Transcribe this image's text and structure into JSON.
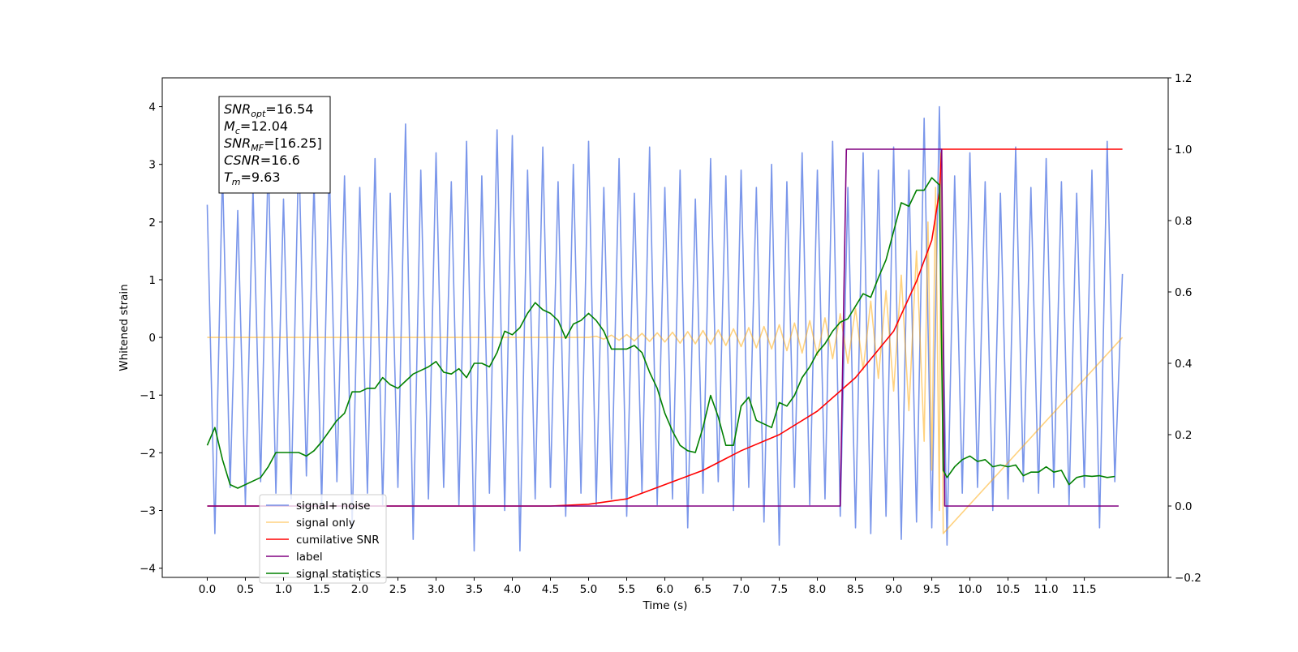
{
  "chart_data": {
    "type": "line",
    "xlabel": "Time (s)",
    "ylabel": "Whitened strain",
    "xlim": [
      -0.59,
      12.6
    ],
    "ylim": [
      -4.16,
      4.5
    ],
    "y2lim": [
      -0.2,
      1.2
    ],
    "xticks": [
      {
        "value": 0,
        "label": "0.0"
      },
      0.5,
      {
        "value": 1,
        "label": "1.0"
      },
      1.5,
      {
        "value": 2,
        "label": "2.0"
      },
      2.5,
      {
        "value": 3,
        "label": "3.0"
      },
      3.5,
      {
        "value": 4,
        "label": "4.0"
      },
      4.5,
      {
        "value": 5,
        "label": "5.0"
      },
      5.5,
      {
        "value": 6,
        "label": "6.0"
      },
      6.5,
      {
        "value": 7,
        "label": "7.0"
      },
      7.5,
      {
        "value": 8,
        "label": "8.0"
      },
      8.5,
      {
        "value": 9,
        "label": "9.0"
      },
      9.5,
      {
        "value": 10,
        "label": "10.0"
      },
      10.5,
      {
        "value": 11,
        "label": "11.0"
      },
      11.5
    ],
    "yticks": [
      {
        "value": -4,
        "label": "−4"
      },
      {
        "value": -3,
        "label": "−3"
      },
      {
        "value": -2,
        "label": "−2"
      },
      {
        "value": -1,
        "label": "−1"
      },
      0,
      1,
      2,
      3,
      4
    ],
    "y2ticks": [
      {
        "value": -0.2,
        "label": "−0.2"
      },
      {
        "value": 0,
        "label": "0.0"
      },
      0.2,
      0.4,
      0.6,
      0.8,
      {
        "value": 1,
        "label": "1.0"
      },
      1.2
    ],
    "legend": "lower left",
    "annotation": [
      {
        "name": "SNR",
        "sub": "opt",
        "text": "=16.54"
      },
      {
        "name": "M",
        "sub": "c",
        "text": "=12.04"
      },
      {
        "name": "SNR",
        "sub": "MF",
        "text": "=[16.25]"
      },
      {
        "name": "CSNR",
        "text": "=16.6"
      },
      {
        "name": "T",
        "sub": "m",
        "text": "=9.63"
      }
    ],
    "series": [
      {
        "name": "signal+ noise",
        "color": "#4169e1",
        "alpha": 0.7,
        "x": [
          0,
          0.1,
          0.2,
          0.3,
          0.4,
          0.5,
          0.6,
          0.7,
          0.8,
          0.9,
          1,
          1.1,
          1.2,
          1.3,
          1.4,
          1.5,
          1.6,
          1.7,
          1.8,
          1.9,
          2,
          2.1,
          2.2,
          2.3,
          2.4,
          2.5,
          2.6,
          2.7,
          2.8,
          2.9,
          3,
          3.1,
          3.2,
          3.3,
          3.4,
          3.5,
          3.6,
          3.7,
          3.8,
          3.9,
          4,
          4.1,
          4.2,
          4.3,
          4.4,
          4.5,
          4.6,
          4.7,
          4.8,
          4.9,
          5,
          5.1,
          5.2,
          5.3,
          5.4,
          5.5,
          5.6,
          5.7,
          5.8,
          5.9,
          6,
          6.1,
          6.2,
          6.3,
          6.4,
          6.5,
          6.6,
          6.7,
          6.8,
          6.9,
          7,
          7.1,
          7.2,
          7.3,
          7.4,
          7.5,
          7.6,
          7.7,
          7.8,
          7.9,
          8,
          8.1,
          8.2,
          8.3,
          8.4,
          8.5,
          8.6,
          8.7,
          8.8,
          8.9,
          9,
          9.1,
          9.2,
          9.3,
          9.4,
          9.5,
          9.6,
          9.7,
          9.8,
          9.9,
          10,
          10.1,
          10.2,
          10.3,
          10.4,
          10.5,
          10.6,
          10.7,
          10.8,
          10.9,
          11,
          11.1,
          11.2,
          11.3,
          11.4,
          11.5,
          11.6,
          11.7,
          11.8,
          11.9,
          12
        ],
        "values": [
          2.3,
          -3.4,
          2.9,
          -2.6,
          2.2,
          -2.9,
          2.6,
          -2.5,
          3.1,
          -2.7,
          2.4,
          -2.8,
          3.3,
          -2.4,
          2.7,
          -2.9,
          3.0,
          -2.5,
          2.8,
          -3.3,
          2.6,
          -2.7,
          3.1,
          -2.9,
          2.5,
          -2.6,
          3.7,
          -3.5,
          2.9,
          -2.8,
          3.2,
          -2.6,
          2.7,
          -2.9,
          3.4,
          -3.7,
          2.8,
          -2.7,
          3.6,
          -3.0,
          3.5,
          -3.7,
          2.9,
          -2.8,
          3.3,
          -2.6,
          2.7,
          -3.1,
          3.0,
          -2.7,
          3.4,
          -2.9,
          2.6,
          -2.8,
          3.1,
          -3.1,
          2.5,
          -2.7,
          3.3,
          -2.9,
          2.6,
          -2.8,
          2.9,
          -3.3,
          2.4,
          -2.7,
          3.1,
          -2.5,
          2.8,
          -3.0,
          2.9,
          -2.6,
          2.6,
          -3.2,
          3.0,
          -3.6,
          2.7,
          -2.6,
          3.2,
          -2.9,
          2.9,
          -2.8,
          3.4,
          -3.1,
          2.6,
          -3.3,
          3.2,
          -3.4,
          2.9,
          -3.1,
          3.3,
          -3.5,
          2.9,
          -3.2,
          3.8,
          -3.3,
          4.0,
          -3.6,
          2.8,
          -2.7,
          3.2,
          -2.6,
          2.7,
          -3.0,
          2.5,
          -2.8,
          3.3,
          -2.5,
          2.6,
          -2.7,
          3.1,
          -2.6,
          2.7,
          -2.9,
          2.5,
          -2.6,
          2.9,
          -3.3,
          3.4,
          -2.5,
          1.1
        ]
      },
      {
        "name": "signal only",
        "color": "#ffa500",
        "alpha": 0.5,
        "x": [
          0,
          5.0,
          5.1,
          5.2,
          5.3,
          5.4,
          5.5,
          5.6,
          5.7,
          5.8,
          5.9,
          6.0,
          6.1,
          6.2,
          6.3,
          6.4,
          6.5,
          6.6,
          6.7,
          6.8,
          6.9,
          7.0,
          7.1,
          7.2,
          7.3,
          7.4,
          7.5,
          7.6,
          7.7,
          7.8,
          7.9,
          8.0,
          8.1,
          8.2,
          8.3,
          8.4,
          8.5,
          8.6,
          8.7,
          8.8,
          8.9,
          9.0,
          9.1,
          9.2,
          9.3,
          9.4,
          9.45,
          9.5,
          9.55,
          9.6,
          9.62,
          9.65,
          12
        ],
        "values": [
          0,
          0,
          0.02,
          -0.03,
          0.04,
          -0.05,
          0.05,
          -0.06,
          0.07,
          -0.07,
          0.08,
          -0.08,
          0.09,
          -0.1,
          0.1,
          -0.11,
          0.12,
          -0.12,
          0.13,
          -0.14,
          0.15,
          -0.16,
          0.17,
          -0.18,
          0.19,
          -0.2,
          0.22,
          -0.23,
          0.25,
          -0.27,
          0.29,
          -0.31,
          0.34,
          -0.37,
          0.41,
          -0.45,
          0.5,
          -0.56,
          0.63,
          -0.71,
          0.81,
          -0.93,
          1.08,
          -1.27,
          1.5,
          -1.8,
          2.0,
          -2.3,
          2.6,
          -3.0,
          3.2,
          -3.4,
          0
        ]
      },
      {
        "name": "cumilative SNR",
        "color": "#ff0000",
        "axis": "y2",
        "x": [
          0,
          4.5,
          5,
          5.5,
          6,
          6.5,
          7,
          7.5,
          8,
          8.5,
          9,
          9.3,
          9.5,
          9.6,
          9.63,
          12
        ],
        "values": [
          0,
          0,
          0.005,
          0.02,
          0.06,
          0.1,
          0.155,
          0.2,
          0.266,
          0.36,
          0.49,
          0.63,
          0.745,
          0.88,
          1,
          1
        ]
      },
      {
        "name": "label",
        "color": "#800080",
        "axis": "y2",
        "x": [
          0,
          8.3,
          8.38,
          9.63,
          9.67,
          11.95
        ],
        "values": [
          0,
          0,
          1,
          1,
          0,
          0
        ]
      },
      {
        "name": "signal statistics",
        "color": "#008000",
        "axis": "y2",
        "x": [
          0,
          0.1,
          0.2,
          0.3,
          0.4,
          0.6,
          0.7,
          0.8,
          0.9,
          1,
          1.2,
          1.3,
          1.4,
          1.5,
          1.6,
          1.7,
          1.8,
          1.9,
          2,
          2.1,
          2.2,
          2.3,
          2.4,
          2.5,
          2.6,
          2.7,
          2.8,
          2.9,
          3,
          3.1,
          3.2,
          3.3,
          3.4,
          3.5,
          3.6,
          3.7,
          3.8,
          3.9,
          4,
          4.1,
          4.2,
          4.3,
          4.4,
          4.5,
          4.6,
          4.7,
          4.8,
          4.9,
          5,
          5.1,
          5.2,
          5.3,
          5.4,
          5.5,
          5.6,
          5.7,
          5.8,
          5.9,
          6,
          6.1,
          6.2,
          6.3,
          6.4,
          6.5,
          6.6,
          6.7,
          6.8,
          6.9,
          7,
          7.1,
          7.2,
          7.3,
          7.4,
          7.5,
          7.6,
          7.7,
          7.8,
          7.9,
          8,
          8.1,
          8.2,
          8.3,
          8.4,
          8.5,
          8.6,
          8.7,
          8.8,
          8.9,
          9,
          9.1,
          9.2,
          9.3,
          9.4,
          9.5,
          9.6,
          9.65,
          9.7,
          9.8,
          9.9,
          10,
          10.1,
          10.2,
          10.3,
          10.4,
          10.5,
          10.6,
          10.7,
          10.8,
          10.9,
          11,
          11.1,
          11.2,
          11.3,
          11.4,
          11.5,
          11.6,
          11.7,
          11.8,
          11.9
        ],
        "values": [
          0.17,
          0.22,
          0.13,
          0.06,
          0.05,
          0.07,
          0.08,
          0.11,
          0.15,
          0.15,
          0.15,
          0.14,
          0.155,
          0.18,
          0.21,
          0.24,
          0.26,
          0.32,
          0.32,
          0.33,
          0.33,
          0.36,
          0.34,
          0.33,
          0.35,
          0.37,
          0.38,
          0.39,
          0.405,
          0.375,
          0.37,
          0.385,
          0.36,
          0.4,
          0.4,
          0.39,
          0.43,
          0.49,
          0.48,
          0.5,
          0.54,
          0.57,
          0.55,
          0.54,
          0.52,
          0.47,
          0.51,
          0.52,
          0.54,
          0.52,
          0.49,
          0.44,
          0.44,
          0.44,
          0.45,
          0.43,
          0.375,
          0.33,
          0.26,
          0.21,
          0.17,
          0.155,
          0.15,
          0.22,
          0.31,
          0.25,
          0.17,
          0.17,
          0.28,
          0.305,
          0.24,
          0.23,
          0.22,
          0.29,
          0.28,
          0.31,
          0.36,
          0.39,
          0.43,
          0.455,
          0.49,
          0.515,
          0.525,
          0.56,
          0.595,
          0.585,
          0.64,
          0.69,
          0.77,
          0.85,
          0.84,
          0.885,
          0.885,
          0.92,
          0.9,
          0.1,
          0.08,
          0.11,
          0.13,
          0.14,
          0.125,
          0.13,
          0.11,
          0.115,
          0.11,
          0.115,
          0.085,
          0.095,
          0.095,
          0.11,
          0.095,
          0.1,
          0.06,
          0.08,
          0.085,
          0.083,
          0.085,
          0.08,
          0.083
        ]
      }
    ]
  }
}
